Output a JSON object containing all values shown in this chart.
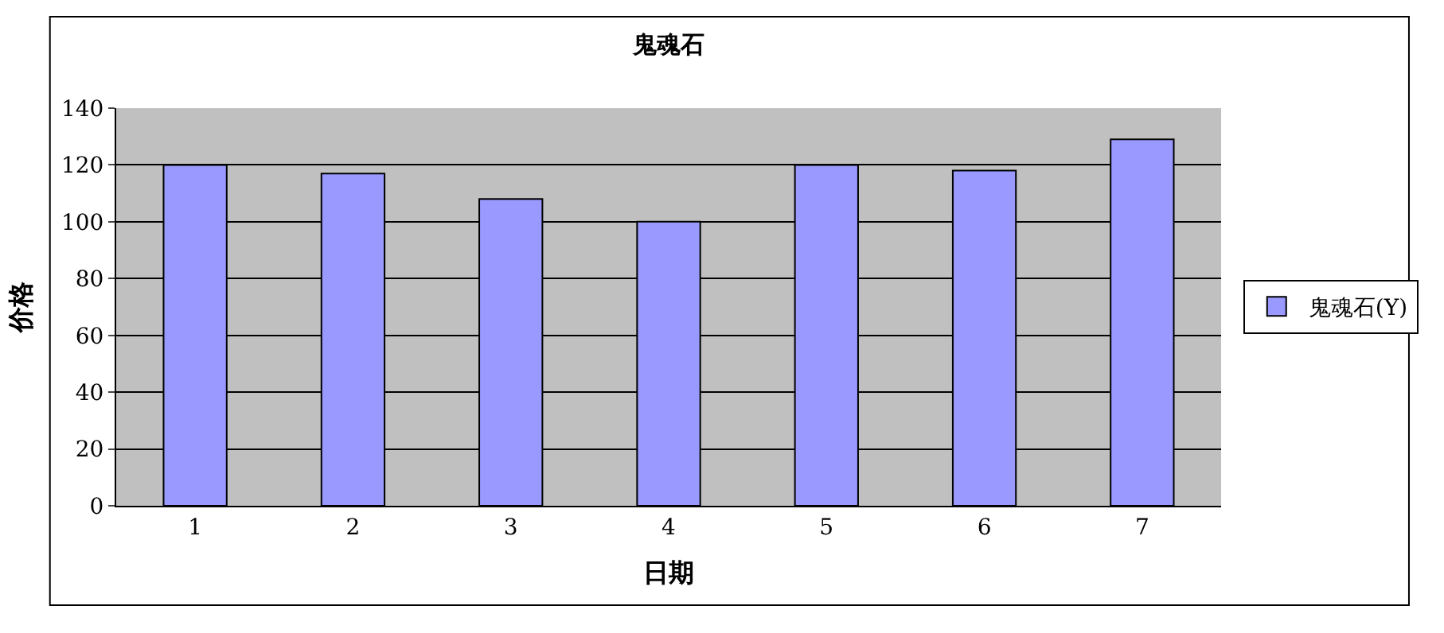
{
  "chart_data": {
    "type": "bar",
    "title": "鬼魂石",
    "xlabel": "日期",
    "ylabel": "价格",
    "categories": [
      "1",
      "2",
      "3",
      "4",
      "5",
      "6",
      "7"
    ],
    "series": [
      {
        "name": "鬼魂石(Y)",
        "color": "#9999ff",
        "values": [
          120,
          117,
          108,
          100,
          120,
          118,
          129
        ]
      }
    ],
    "ylim": [
      0,
      140
    ],
    "yticks": [
      0,
      20,
      40,
      60,
      80,
      100,
      120,
      140
    ],
    "grid": "y",
    "legend": "right"
  }
}
